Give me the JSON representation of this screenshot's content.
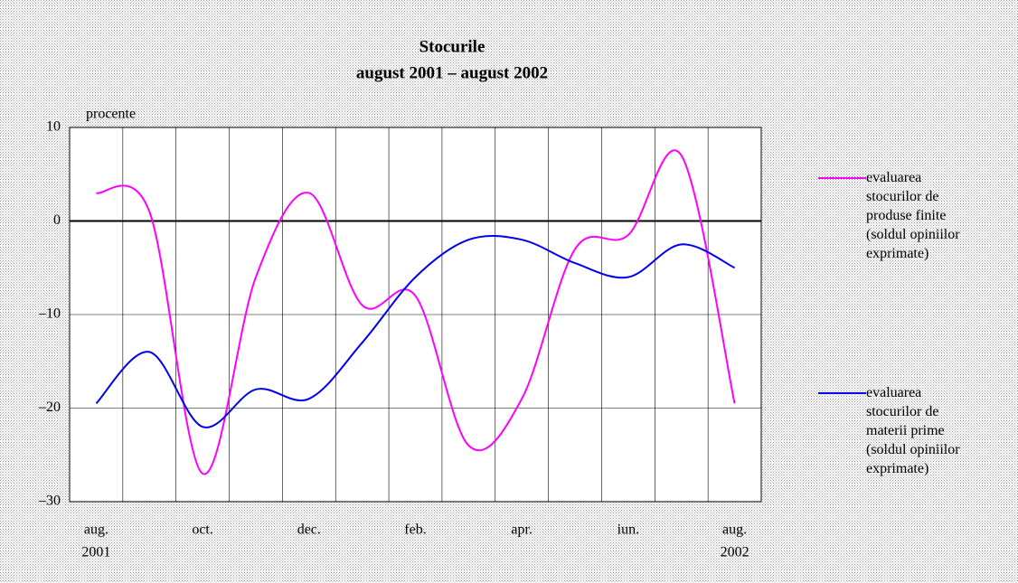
{
  "chart_data": {
    "type": "line",
    "title": "Stocurile",
    "subtitle": "august 2001 – august 2002",
    "y_label": "procente",
    "categories": [
      "aug.",
      null,
      "oct.",
      null,
      "dec.",
      null,
      "feb.",
      null,
      "apr.",
      null,
      "iun.",
      null,
      "aug."
    ],
    "category_years": [
      "2001",
      null,
      null,
      null,
      null,
      null,
      null,
      null,
      null,
      null,
      null,
      null,
      "2002"
    ],
    "series": [
      {
        "name": "evaluarea\nstocurilor de\nproduse finite\n(soldul opiniilor\nexprimate)",
        "color": "#ff00ff",
        "values": [
          3,
          1,
          -27,
          -6,
          3,
          -9,
          -8,
          -24,
          -19,
          -3,
          -1.5,
          7,
          -19.5
        ]
      },
      {
        "name": "evaluarea\nstocurilor de\nmaterii prime\n(soldul opiniilor\nexprimate)",
        "color": "#0000ee",
        "values": [
          -19.5,
          -14,
          -22,
          -18,
          -19,
          -13,
          -6,
          -2,
          -2,
          -4.5,
          -6,
          -2.5,
          -5
        ]
      }
    ],
    "ylim": [
      -30,
      10
    ],
    "yticks": [
      10,
      0,
      {
        "value": -10,
        "label": "–10"
      },
      {
        "value": -20,
        "label": "–20"
      },
      {
        "value": -30,
        "label": "–30"
      }
    ],
    "grid": true
  }
}
